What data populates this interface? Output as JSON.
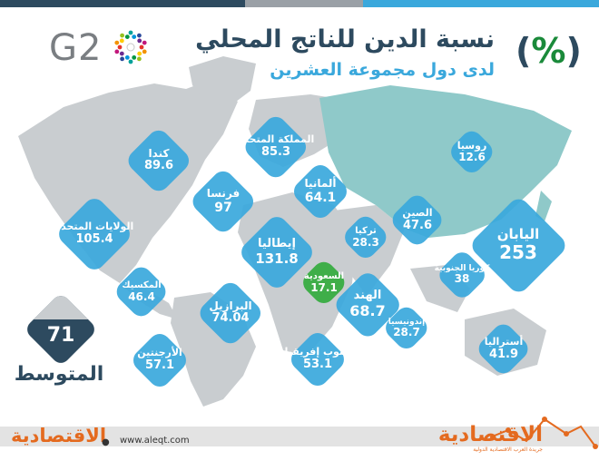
{
  "header": {
    "title": "نسبة الدين للناتج المحلي",
    "subtitle": "لدى دول مجموعة العشرين",
    "unit_symbol": "%",
    "g20_logo_text": "G2"
  },
  "average": {
    "label": "المتوسط",
    "value": "71"
  },
  "footer": {
    "brand_left": "الاقتصادية",
    "url": "www.aleqt.com",
    "brand_right": "الاقتصادية",
    "brand_right_sub": "جريدة العرب الاقتصادية الدولية"
  },
  "colors": {
    "accent": "#3aa8dc",
    "dark": "#2d4a5f",
    "green": "#3fae49",
    "orange": "#e46a1f",
    "map_land": "#c9cdd0",
    "map_sea_teal": "#8fc9c9"
  },
  "chart_data": {
    "type": "bar",
    "unit": "%",
    "categories": [
      "اليابان",
      "إيطاليا",
      "الولايات المتحدة",
      "كندا",
      "فرنسا",
      "المملكة المتحدة",
      "البرازيل",
      "الهند",
      "ألمانيا",
      "الأرجنتين",
      "جنوب إفريقيا",
      "الصين",
      "المكسيك",
      "أستراليا",
      "كوريا الجنوبية",
      "إندونيسيا",
      "تركيا",
      "السعودية",
      "روسيا"
    ],
    "values": [
      253,
      131.8,
      105.4,
      89.6,
      97,
      85.3,
      74.04,
      68.7,
      64.1,
      57.1,
      53.1,
      47.6,
      46.4,
      41.9,
      38,
      28.7,
      28.3,
      17.1,
      12.6
    ],
    "labels": [
      "253",
      "131.8",
      "105.4",
      "89.6",
      "97",
      "85.3",
      "74.04",
      "68.7",
      "64.1",
      "57.1",
      "53.1",
      "47.6",
      "46.4",
      "41.9",
      "38",
      "28.7",
      "28.3",
      "17.1",
      "12.6"
    ],
    "highlight": "السعودية",
    "average": 71
  }
}
